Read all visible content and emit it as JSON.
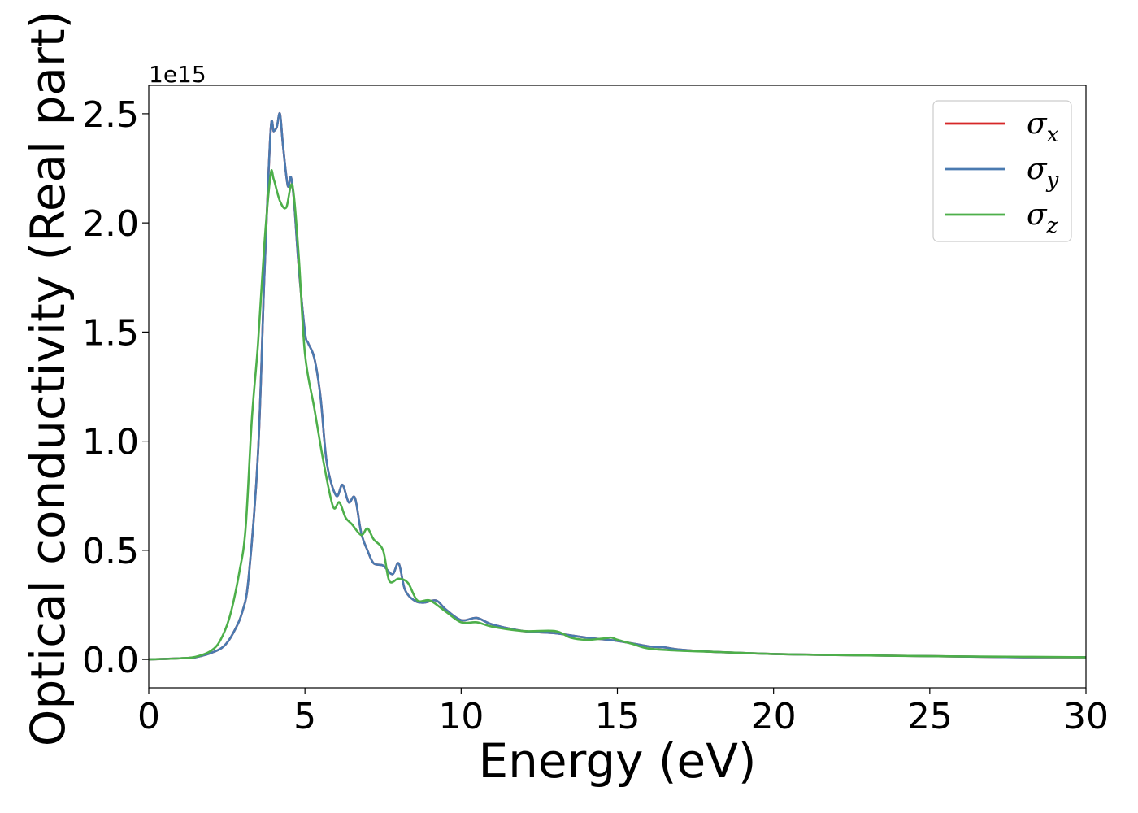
{
  "chart_data": {
    "type": "line",
    "xlabel": "Energy (eV)",
    "ylabel": "Optical conductivity (Real part)",
    "offset_text": "1e15",
    "xlim": [
      0,
      30
    ],
    "ylim": [
      -0.13,
      2.63
    ],
    "x_ticks": [
      0,
      5,
      10,
      15,
      20,
      25,
      30
    ],
    "x_tick_labels": [
      "0",
      "5",
      "10",
      "15",
      "20",
      "25",
      "30"
    ],
    "y_ticks": [
      0.0,
      0.5,
      1.0,
      1.5,
      2.0,
      2.5
    ],
    "y_tick_labels": [
      "0.0",
      "0.5",
      "1.0",
      "1.5",
      "2.0",
      "2.5"
    ],
    "grid": false,
    "legend_position": "top-right",
    "series": [
      {
        "name": "σx",
        "legend_symbol": "σ",
        "legend_subscript": "x",
        "color": "#d62728",
        "x": [
          0,
          1,
          1.5,
          2,
          2.4,
          2.7,
          3.0,
          3.2,
          3.5,
          3.7,
          3.9,
          4.0,
          4.1,
          4.2,
          4.3,
          4.45,
          4.55,
          4.65,
          4.8,
          5.0,
          5.1,
          5.3,
          5.5,
          5.7,
          6.0,
          6.2,
          6.4,
          6.6,
          6.8,
          7.0,
          7.2,
          7.5,
          7.8,
          8.0,
          8.2,
          8.5,
          8.8,
          9.2,
          9.5,
          10.0,
          10.5,
          11.0,
          12.0,
          13.0,
          14.0,
          15.0,
          16.0,
          16.5,
          17.0,
          18.0,
          20.0,
          22.0,
          25.0,
          28.0,
          30.0
        ],
        "y": [
          0.0,
          0.005,
          0.01,
          0.03,
          0.06,
          0.12,
          0.22,
          0.38,
          0.95,
          1.75,
          2.42,
          2.42,
          2.44,
          2.5,
          2.35,
          2.17,
          2.21,
          2.1,
          1.8,
          1.5,
          1.45,
          1.38,
          1.2,
          0.9,
          0.75,
          0.8,
          0.72,
          0.74,
          0.58,
          0.5,
          0.44,
          0.43,
          0.39,
          0.44,
          0.32,
          0.27,
          0.26,
          0.27,
          0.23,
          0.18,
          0.19,
          0.16,
          0.13,
          0.12,
          0.1,
          0.085,
          0.06,
          0.055,
          0.045,
          0.035,
          0.025,
          0.02,
          0.015,
          0.01,
          0.01
        ]
      },
      {
        "name": "σy",
        "legend_symbol": "σ",
        "legend_subscript": "y",
        "color": "#4a7ab0",
        "x": [
          0,
          1,
          1.5,
          2,
          2.4,
          2.7,
          3.0,
          3.2,
          3.5,
          3.7,
          3.9,
          4.0,
          4.1,
          4.2,
          4.3,
          4.45,
          4.55,
          4.65,
          4.8,
          5.0,
          5.1,
          5.3,
          5.5,
          5.7,
          6.0,
          6.2,
          6.4,
          6.6,
          6.8,
          7.0,
          7.2,
          7.5,
          7.8,
          8.0,
          8.2,
          8.5,
          8.8,
          9.2,
          9.5,
          10.0,
          10.5,
          11.0,
          12.0,
          13.0,
          14.0,
          15.0,
          16.0,
          16.5,
          17.0,
          18.0,
          20.0,
          22.0,
          25.0,
          28.0,
          30.0
        ],
        "y": [
          0.0,
          0.005,
          0.01,
          0.03,
          0.06,
          0.12,
          0.22,
          0.38,
          0.95,
          1.75,
          2.42,
          2.42,
          2.44,
          2.5,
          2.35,
          2.17,
          2.21,
          2.1,
          1.8,
          1.5,
          1.45,
          1.38,
          1.2,
          0.9,
          0.75,
          0.8,
          0.72,
          0.74,
          0.58,
          0.5,
          0.44,
          0.43,
          0.39,
          0.44,
          0.32,
          0.27,
          0.26,
          0.27,
          0.23,
          0.18,
          0.19,
          0.16,
          0.13,
          0.12,
          0.1,
          0.085,
          0.06,
          0.055,
          0.045,
          0.035,
          0.025,
          0.02,
          0.015,
          0.01,
          0.01
        ]
      },
      {
        "name": "σz",
        "legend_symbol": "σ",
        "legend_subscript": "z",
        "color": "#4daf4a",
        "x": [
          0,
          1,
          1.5,
          2,
          2.3,
          2.6,
          2.9,
          3.1,
          3.3,
          3.5,
          3.7,
          3.9,
          4.0,
          4.2,
          4.4,
          4.6,
          4.8,
          5.0,
          5.3,
          5.6,
          5.9,
          6.1,
          6.3,
          6.5,
          6.8,
          7.0,
          7.2,
          7.5,
          7.7,
          8.0,
          8.3,
          8.6,
          9.0,
          9.5,
          10.0,
          10.5,
          11.0,
          12.0,
          13.0,
          13.5,
          14.0,
          14.5,
          14.8,
          15.0,
          15.5,
          16.0,
          17.0,
          18.0,
          20.0,
          22.0,
          25.0,
          28.0,
          30.0
        ],
        "y": [
          0.0,
          0.005,
          0.012,
          0.04,
          0.09,
          0.2,
          0.4,
          0.6,
          1.1,
          1.45,
          1.9,
          2.22,
          2.2,
          2.1,
          2.07,
          2.17,
          1.85,
          1.4,
          1.15,
          0.9,
          0.7,
          0.72,
          0.65,
          0.62,
          0.57,
          0.6,
          0.55,
          0.5,
          0.36,
          0.37,
          0.35,
          0.27,
          0.27,
          0.22,
          0.17,
          0.17,
          0.15,
          0.13,
          0.13,
          0.1,
          0.09,
          0.095,
          0.1,
          0.09,
          0.07,
          0.05,
          0.04,
          0.035,
          0.025,
          0.02,
          0.015,
          0.012,
          0.01
        ]
      }
    ]
  }
}
